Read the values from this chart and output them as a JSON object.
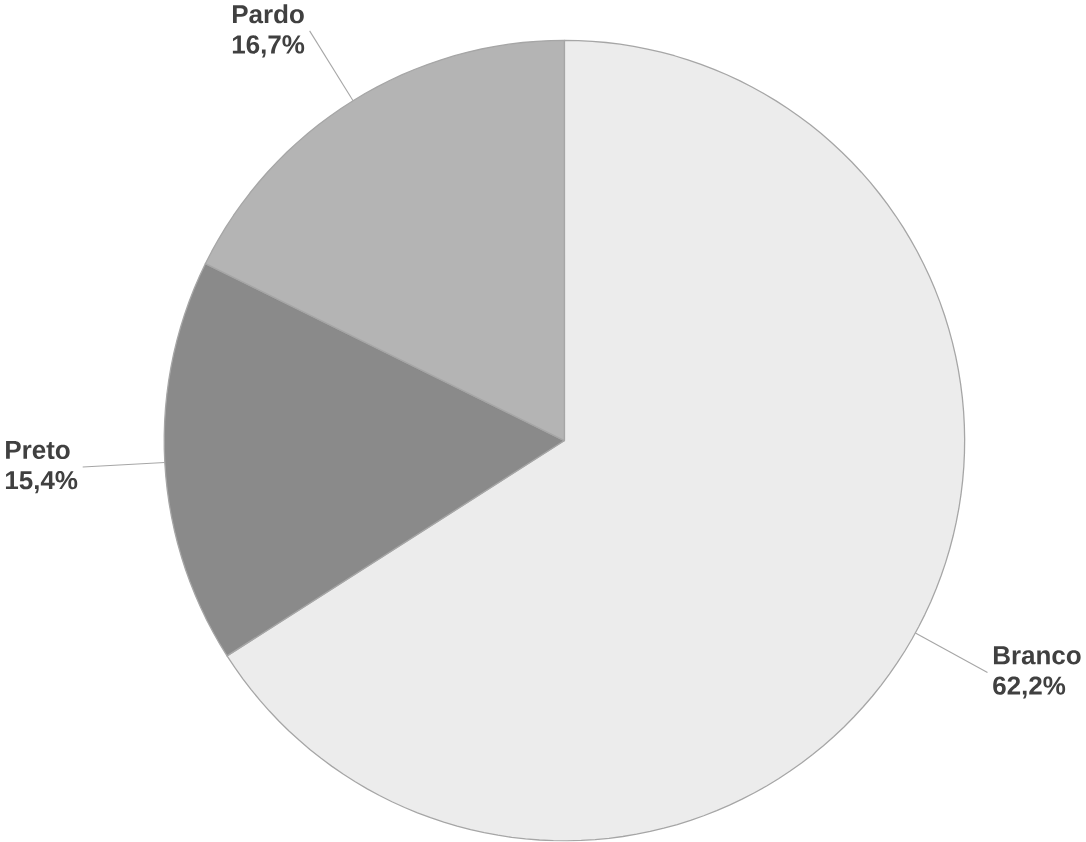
{
  "chart_data": {
    "type": "pie",
    "categories": [
      "Branco",
      "Preto",
      "Pardo"
    ],
    "values": [
      62.2,
      15.4,
      16.7
    ],
    "value_labels": [
      "62,2%",
      "15,4%",
      "16,7%"
    ],
    "colors": [
      "#ececec",
      "#8a8a8a",
      "#b4b4b4"
    ]
  }
}
